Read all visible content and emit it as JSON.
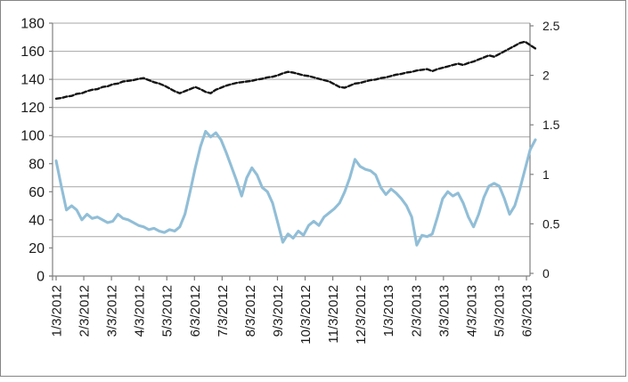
{
  "window": {
    "background": "#ffffff",
    "border_color": "#858585"
  },
  "chart_data": {
    "type": "line",
    "title": "",
    "legend": "none",
    "grid": true,
    "x_tick_labels": [
      "1/3/2012",
      "2/3/2012",
      "3/3/2012",
      "4/3/2012",
      "5/3/2012",
      "6/3/2012",
      "7/3/2012",
      "8/3/2012",
      "9/3/2012",
      "10/3/2012",
      "11/3/2012",
      "12/3/2012",
      "1/3/2013",
      "2/3/2013",
      "3/3/2013",
      "4/3/2013",
      "5/3/2013",
      "6/3/2013"
    ],
    "axes": {
      "left": {
        "min": 0,
        "max": 180,
        "tick_step": 20,
        "tick_labels": [
          "0",
          "20",
          "40",
          "60",
          "80",
          "100",
          "120",
          "140",
          "160",
          "180"
        ]
      },
      "right": {
        "min": 0,
        "max": 2.5,
        "tick_step": 0.5,
        "tick_labels": [
          "0",
          "0.5",
          "1",
          "1.5",
          "2",
          "2.5"
        ]
      }
    },
    "gridlines_left_units": [
      180,
      160,
      140,
      120,
      99,
      63.5,
      28
    ],
    "colors": {
      "blue_series": "#91BED7",
      "black_series": "#141414",
      "gridline": "#A6A6A6",
      "axis": "#808080",
      "text": "#1a1a1a"
    },
    "series": [
      {
        "name": "black-dashed-line",
        "axis": "right",
        "style": "dashed",
        "color": "#141414",
        "values": [
          1.764,
          1.771,
          1.785,
          1.792,
          1.813,
          1.819,
          1.84,
          1.854,
          1.861,
          1.882,
          1.889,
          1.91,
          1.917,
          1.938,
          1.944,
          1.951,
          1.965,
          1.972,
          1.951,
          1.931,
          1.917,
          1.896,
          1.868,
          1.84,
          1.819,
          1.84,
          1.861,
          1.882,
          1.861,
          1.833,
          1.819,
          1.854,
          1.875,
          1.896,
          1.91,
          1.924,
          1.931,
          1.938,
          1.944,
          1.958,
          1.965,
          1.979,
          1.986,
          2.0,
          2.021,
          2.035,
          2.028,
          2.014,
          2.0,
          1.993,
          1.979,
          1.965,
          1.951,
          1.938,
          1.91,
          1.882,
          1.875,
          1.896,
          1.917,
          1.924,
          1.938,
          1.951,
          1.958,
          1.972,
          1.979,
          1.993,
          2.007,
          2.014,
          2.028,
          2.035,
          2.049,
          2.056,
          2.063,
          2.042,
          2.063,
          2.076,
          2.09,
          2.104,
          2.118,
          2.104,
          2.125,
          2.139,
          2.16,
          2.181,
          2.201,
          2.188,
          2.215,
          2.243,
          2.271,
          2.299,
          2.326,
          2.34,
          2.306,
          2.271
        ]
      },
      {
        "name": "blue-line",
        "axis": "left",
        "style": "solid",
        "color": "#91BED7",
        "values": [
          82,
          64,
          47,
          50,
          47,
          40,
          44,
          41,
          42,
          40,
          38,
          39,
          44,
          41,
          40,
          38,
          36,
          35,
          33,
          34,
          32,
          31,
          33,
          32,
          35,
          44,
          60,
          77,
          92,
          103,
          99,
          102,
          97,
          88,
          78,
          68,
          57,
          70,
          77,
          72,
          63,
          60,
          52,
          38,
          24,
          30,
          27,
          32,
          29,
          36,
          39,
          36,
          42,
          45,
          48,
          52,
          60,
          70,
          83,
          78,
          76,
          75,
          72,
          63,
          58,
          62,
          59,
          55,
          50,
          42,
          22,
          29,
          28,
          30,
          42,
          55,
          60,
          57,
          59,
          52,
          42,
          35,
          44,
          56,
          64,
          66,
          64,
          55,
          44,
          50,
          62,
          76,
          90,
          97
        ]
      }
    ]
  }
}
